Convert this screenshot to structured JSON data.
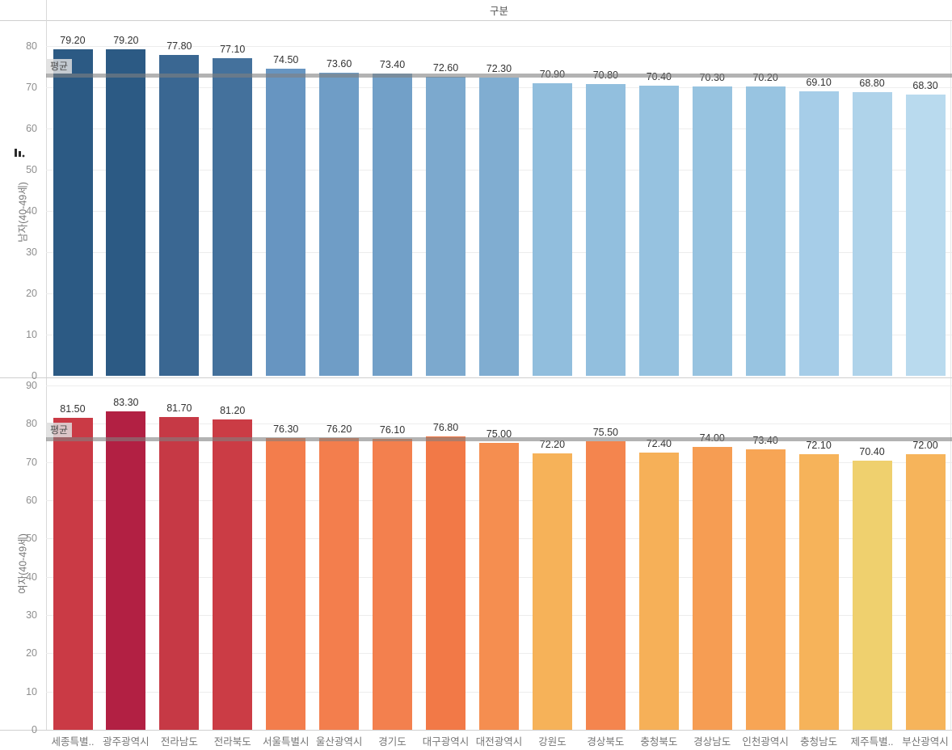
{
  "title": "구분",
  "categories": [
    "세종특별..",
    "광주광역시",
    "전라남도",
    "전라북도",
    "서울특별시",
    "울산광역시",
    "경기도",
    "대구광역시",
    "대전광역시",
    "강원도",
    "경상북도",
    "충청북도",
    "경상남도",
    "인천광역시",
    "충청남도",
    "제주특별..",
    "부산광역시"
  ],
  "icons": {
    "sort_axis": "descending-bars-sort-icon"
  },
  "chart_data": [
    {
      "type": "bar",
      "title": "구분",
      "axis_label": "남자(40-49세)",
      "values": [
        79.2,
        79.2,
        77.8,
        77.1,
        74.5,
        73.6,
        73.4,
        72.6,
        72.3,
        70.9,
        70.8,
        70.4,
        70.3,
        70.2,
        69.1,
        68.8,
        68.3
      ],
      "bar_colors": [
        "#2c5a84",
        "#2c5a84",
        "#3a6792",
        "#44719c",
        "#6795c1",
        "#6f9dc6",
        "#72a0c8",
        "#7ca9ce",
        "#80add1",
        "#91bedd",
        "#92bfde",
        "#96c2e0",
        "#97c3e0",
        "#98c4e1",
        "#a6cde8",
        "#afd3ea",
        "#b9daee"
      ],
      "ylim": [
        0,
        80
      ],
      "ytick_step": 10,
      "grid": true,
      "reference_line": {
        "label": "평균",
        "value": 72.85
      }
    },
    {
      "type": "bar",
      "title": "구분",
      "axis_label": "여자(40-49세)",
      "values": [
        81.5,
        83.3,
        81.7,
        81.2,
        76.3,
        76.2,
        76.1,
        76.8,
        75.0,
        72.2,
        75.5,
        72.4,
        74.0,
        73.4,
        72.1,
        70.4,
        72.0
      ],
      "bar_colors": [
        "#ca3a45",
        "#b22043",
        "#c63945",
        "#cb3c45",
        "#f37d4c",
        "#f37e4d",
        "#f3804e",
        "#f27947",
        "#f58e50",
        "#f6b259",
        "#f4854e",
        "#f6b058",
        "#f69d53",
        "#f7a555",
        "#f6b35a",
        "#efd06e",
        "#f6b45b"
      ],
      "ylim": [
        0,
        90
      ],
      "ytick_step": 10,
      "grid": true,
      "reference_line": {
        "label": "평균",
        "value": 75.89
      }
    }
  ]
}
